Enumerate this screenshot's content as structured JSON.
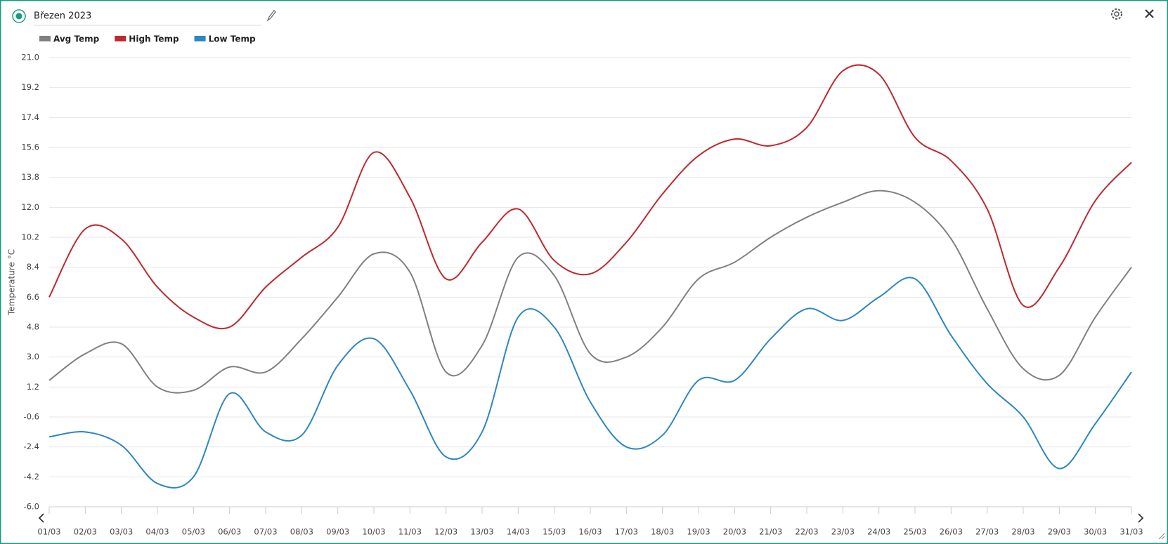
{
  "header": {
    "title": "Březen 2023"
  },
  "chart_data": {
    "type": "line",
    "y_label": "Temperature °C",
    "categories": [
      "01/03",
      "02/03",
      "03/03",
      "04/03",
      "05/03",
      "06/03",
      "07/03",
      "08/03",
      "09/03",
      "10/03",
      "11/03",
      "12/03",
      "13/03",
      "14/03",
      "15/03",
      "16/03",
      "17/03",
      "18/03",
      "19/03",
      "20/03",
      "21/03",
      "22/03",
      "23/03",
      "24/03",
      "25/03",
      "26/03",
      "27/03",
      "28/03",
      "29/03",
      "30/03",
      "31/03"
    ],
    "series": [
      {
        "name": "Avg Temp",
        "color": "#808080",
        "values": [
          1.6,
          3.2,
          3.8,
          1.2,
          1.0,
          2.4,
          2.1,
          4.1,
          6.6,
          9.2,
          8.1,
          2.1,
          3.7,
          9.0,
          7.9,
          3.2,
          3.0,
          4.8,
          7.7,
          8.7,
          10.2,
          11.4,
          12.3,
          13.0,
          12.3,
          10.1,
          5.9,
          2.3,
          1.9,
          5.4,
          8.4
        ]
      },
      {
        "name": "High Temp",
        "color": "#c0282d",
        "values": [
          6.6,
          10.7,
          10.1,
          7.2,
          5.4,
          4.8,
          7.2,
          9.0,
          10.8,
          15.3,
          12.6,
          7.7,
          9.9,
          11.9,
          8.8,
          8.0,
          9.9,
          12.8,
          15.1,
          16.1,
          15.7,
          16.8,
          20.2,
          20.0,
          16.2,
          14.8,
          11.9,
          6.1,
          8.4,
          12.4,
          14.7
        ]
      },
      {
        "name": "Low Temp",
        "color": "#2e86c1",
        "values": [
          -1.8,
          -1.5,
          -2.3,
          -4.6,
          -4.2,
          0.8,
          -1.5,
          -1.7,
          2.5,
          4.1,
          1.0,
          -3.0,
          -1.5,
          5.4,
          4.8,
          0.3,
          -2.4,
          -1.7,
          1.6,
          1.6,
          4.1,
          5.9,
          5.2,
          6.6,
          7.7,
          4.3,
          1.4,
          -0.6,
          -3.7,
          -1.0,
          2.1
        ]
      }
    ],
    "ylim": [
      -6,
      21
    ],
    "yticks": [
      {
        "value": -6,
        "label": "-6.0"
      },
      -4.2,
      -2.4,
      -0.6,
      1.2,
      {
        "value": 3,
        "label": "3.0"
      },
      4.8,
      6.6,
      8.4,
      10.2,
      {
        "value": 12,
        "label": "12.0"
      },
      13.8,
      15.6,
      17.4,
      19.2,
      {
        "value": 21,
        "label": "21.0"
      }
    ],
    "grid": true
  }
}
